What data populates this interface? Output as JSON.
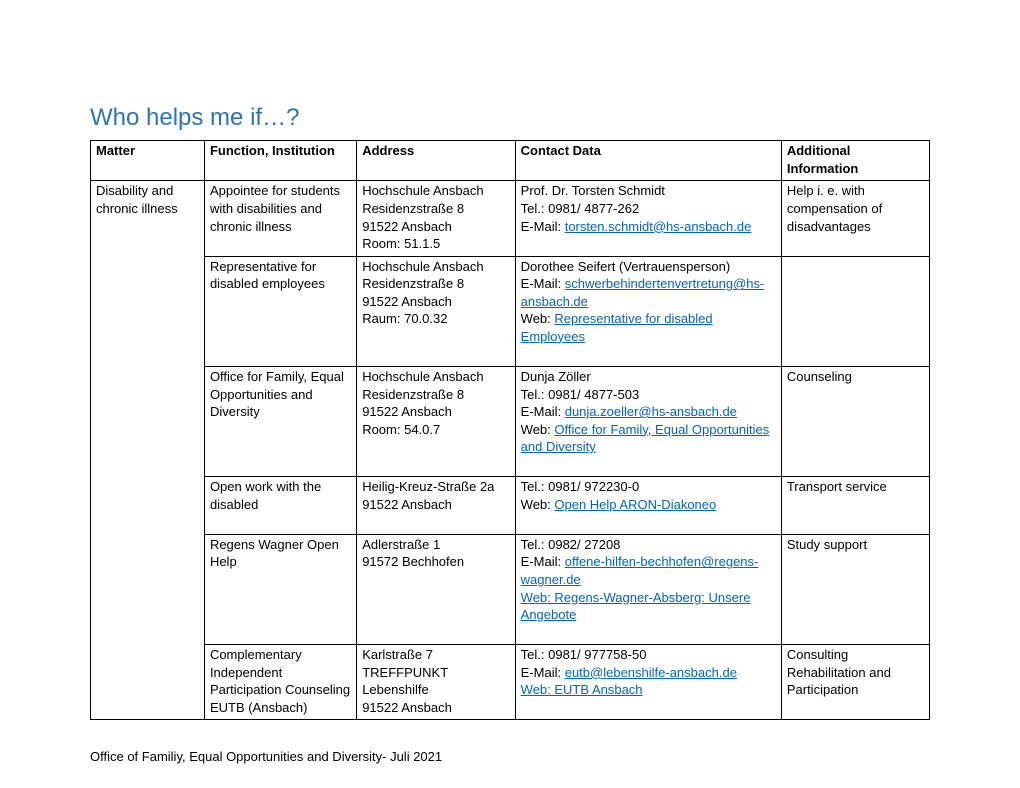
{
  "title": "Who helps me if…?",
  "footer": "Office of Familiy, Equal Opportunities and Diversity- Juli 2021",
  "columns": {
    "c1": "Matter",
    "c2": "Function, Institution",
    "c3": "Address",
    "c4": "Contact Data",
    "c5": "Additional Information"
  },
  "matter_cell": "Disability and chronic illness",
  "rows": {
    "r1": {
      "func": "Appointee for students with disabilities and chronic illness",
      "addr_l1": "Hochschule Ansbach",
      "addr_l2": "Residenzstraße 8",
      "addr_l3": "91522 Ansbach",
      "addr_l4": "Room: 51.1.5",
      "contact_l1": "Prof. Dr. Torsten Schmidt",
      "contact_l2": "Tel.: 0981/ 4877-262",
      "contact_l3_prefix": "E-Mail: ",
      "contact_l3_link": "torsten.schmidt@hs-ansbach.de",
      "info": "Help i. e. with compensation of disadvantages"
    },
    "r2": {
      "func": "Representative for disabled employees",
      "addr_l1": "Hochschule Ansbach",
      "addr_l2": "Residenzstraße 8",
      "addr_l3": "91522 Ansbach",
      "addr_l4": "Raum: 70.0.32",
      "contact_l1": "Dorothee Seifert (Vertrauensperson)",
      "contact_l2": "E-Mail: ",
      "contact_l2_link": "schwerbehindertenvertretung@hs-ansbach.de",
      "contact_l3_prefix": "Web: ",
      "contact_l3_link": "Representative for disabled Employees",
      "info": ""
    },
    "r3": {
      "func": "Office for Family, Equal Opportunities and Diversity",
      "addr_l1": "Hochschule Ansbach",
      "addr_l2": "Residenzstraße 8",
      "addr_l3": "91522 Ansbach",
      "addr_l4": "Room: 54.0.7",
      "contact_l1": "Dunja Zöller",
      "contact_l2": "Tel.: 0981/ 4877-503",
      "contact_l3_prefix": "E-Mail: ",
      "contact_l3_link": "dunja.zoeller@hs-ansbach.de",
      "contact_l4_prefix": "Web: ",
      "contact_l4_link": "Office for Family, Equal Opportunities and Diversity",
      "info": "Counseling"
    },
    "r4": {
      "func": "Open work with the disabled",
      "addr_l1": "Heilig-Kreuz-Straße 2a",
      "addr_l2": "91522 Ansbach",
      "contact_l1": "Tel.: 0981/ 972230-0",
      "contact_l2_prefix": "Web: ",
      "contact_l2_link": "Open Help ARON-Diakoneo",
      "info": "Transport service"
    },
    "r5": {
      "func": "Regens Wagner Open Help",
      "addr_l1": "Adlerstraße 1",
      "addr_l2": "91572 Bechhofen",
      "contact_l1": "Tel.: 0982/ 27208",
      "contact_l2_prefix": "E-Mail: ",
      "contact_l2_link": "offene-hilfen-bechhofen@regens-wagner.de",
      "contact_l3_link": "Web: Regens-Wagner-Absberg:  Unsere Angebote",
      "info": "Study support"
    },
    "r6": {
      "func": "Complementary Independent Participation Counseling EUTB (Ansbach)",
      "addr_l1": "Karlstraße 7",
      "addr_l2": "TREFFPUNKT Lebenshilfe",
      "addr_l3": "91522 Ansbach",
      "contact_l1": "Tel.: 0981/ 977758-50",
      "contact_l2_prefix": "E-Mail: ",
      "contact_l2_link": "eutb@lebenshilfe-ansbach.de",
      "contact_l3_link": "Web: EUTB Ansbach",
      "info": "Consulting Rehabilitation and Participation"
    }
  }
}
